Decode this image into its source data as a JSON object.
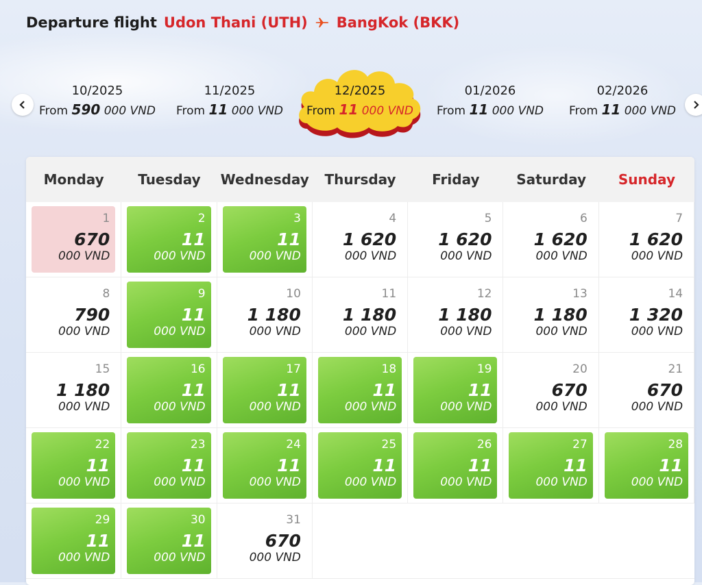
{
  "header": {
    "title": "Departure flight",
    "origin": "Udon Thani (UTH)",
    "destination": "BangKok (BKK)"
  },
  "months": [
    {
      "label": "10/2025",
      "prefix": "From",
      "big": "590",
      "rest": "000 VND",
      "selected": false
    },
    {
      "label": "11/2025",
      "prefix": "From",
      "big": "11",
      "rest": "000 VND",
      "selected": false
    },
    {
      "label": "12/2025",
      "prefix": "From",
      "big": "11",
      "rest": "000 VND",
      "selected": true
    },
    {
      "label": "01/2026",
      "prefix": "From",
      "big": "11",
      "rest": "000 VND",
      "selected": false
    },
    {
      "label": "02/2026",
      "prefix": "From",
      "big": "11",
      "rest": "000 VND",
      "selected": false
    }
  ],
  "weekdays": [
    "Monday",
    "Tuesday",
    "Wednesday",
    "Thursday",
    "Friday",
    "Saturday",
    "Sunday"
  ],
  "colors": {
    "accent_red": "#d6262a",
    "cheap_green": "#7ccc3f",
    "selected_pink": "#f5d4d6",
    "cloud_yellow": "#f7cf2c"
  },
  "days": [
    {
      "day": "1",
      "price": "670",
      "unit": "000 VND",
      "style": "pink"
    },
    {
      "day": "2",
      "price": "11",
      "unit": "000 VND",
      "style": "green"
    },
    {
      "day": "3",
      "price": "11",
      "unit": "000 VND",
      "style": "green"
    },
    {
      "day": "4",
      "price": "1 620",
      "unit": "000 VND",
      "style": "plain"
    },
    {
      "day": "5",
      "price": "1 620",
      "unit": "000 VND",
      "style": "plain"
    },
    {
      "day": "6",
      "price": "1 620",
      "unit": "000 VND",
      "style": "plain"
    },
    {
      "day": "7",
      "price": "1 620",
      "unit": "000 VND",
      "style": "plain"
    },
    {
      "day": "8",
      "price": "790",
      "unit": "000 VND",
      "style": "plain"
    },
    {
      "day": "9",
      "price": "11",
      "unit": "000 VND",
      "style": "green"
    },
    {
      "day": "10",
      "price": "1 180",
      "unit": "000 VND",
      "style": "plain"
    },
    {
      "day": "11",
      "price": "1 180",
      "unit": "000 VND",
      "style": "plain"
    },
    {
      "day": "12",
      "price": "1 180",
      "unit": "000 VND",
      "style": "plain"
    },
    {
      "day": "13",
      "price": "1 180",
      "unit": "000 VND",
      "style": "plain"
    },
    {
      "day": "14",
      "price": "1 320",
      "unit": "000 VND",
      "style": "plain"
    },
    {
      "day": "15",
      "price": "1 180",
      "unit": "000 VND",
      "style": "plain"
    },
    {
      "day": "16",
      "price": "11",
      "unit": "000 VND",
      "style": "green"
    },
    {
      "day": "17",
      "price": "11",
      "unit": "000 VND",
      "style": "green"
    },
    {
      "day": "18",
      "price": "11",
      "unit": "000 VND",
      "style": "green"
    },
    {
      "day": "19",
      "price": "11",
      "unit": "000 VND",
      "style": "green"
    },
    {
      "day": "20",
      "price": "670",
      "unit": "000 VND",
      "style": "plain"
    },
    {
      "day": "21",
      "price": "670",
      "unit": "000 VND",
      "style": "plain"
    },
    {
      "day": "22",
      "price": "11",
      "unit": "000 VND",
      "style": "green"
    },
    {
      "day": "23",
      "price": "11",
      "unit": "000 VND",
      "style": "green"
    },
    {
      "day": "24",
      "price": "11",
      "unit": "000 VND",
      "style": "green"
    },
    {
      "day": "25",
      "price": "11",
      "unit": "000 VND",
      "style": "green"
    },
    {
      "day": "26",
      "price": "11",
      "unit": "000 VND",
      "style": "green"
    },
    {
      "day": "27",
      "price": "11",
      "unit": "000 VND",
      "style": "green"
    },
    {
      "day": "28",
      "price": "11",
      "unit": "000 VND",
      "style": "green"
    },
    {
      "day": "29",
      "price": "11",
      "unit": "000 VND",
      "style": "green"
    },
    {
      "day": "30",
      "price": "11",
      "unit": "000 VND",
      "style": "green"
    },
    {
      "day": "31",
      "price": "670",
      "unit": "000 VND",
      "style": "plain"
    }
  ]
}
